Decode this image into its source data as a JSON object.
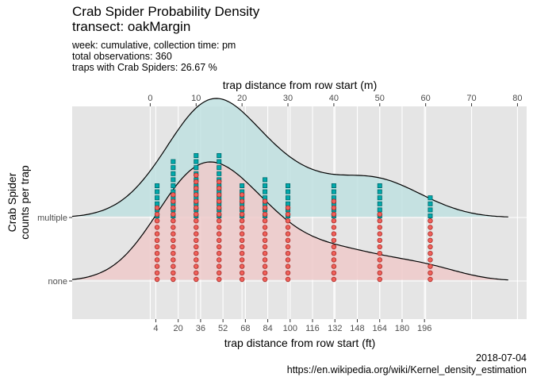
{
  "header": {
    "title_line1": "Crab Spider Probability Density",
    "title_line2": "transect: oakMargin",
    "subtitle_line1": "week: cumulative, collection time: pm",
    "subtitle_line2": "total observations: 360",
    "subtitle_line3": "traps with Crab Spiders: 26.67 %"
  },
  "caption": {
    "date": "2018-07-04",
    "url": "https://en.wikipedia.org/wiki/Kernel_density_estimation"
  },
  "colors": {
    "panel_bg": "#e5e5e5",
    "grid": "#ffffff",
    "multiple_fill": "#bfe0e0",
    "none_fill": "#efcaca",
    "multiple_point": "#00a9ac",
    "none_point": "#f0605a"
  },
  "chart_data": {
    "type": "ridgeline",
    "top_axis": {
      "label": "trap distance from row start (m)",
      "ticks": [
        0,
        10,
        20,
        30,
        40,
        50,
        60,
        70,
        80
      ],
      "range": [
        -17,
        82
      ]
    },
    "bottom_axis": {
      "label": "trap distance from row start (ft)",
      "ticks": [
        4,
        20,
        36,
        52,
        68,
        84,
        100,
        116,
        132,
        148,
        164,
        180,
        196
      ]
    },
    "y_axis": {
      "label_line1": "Crab Spider",
      "label_line2": "counts per trap",
      "categories": [
        "none",
        "multiple"
      ]
    },
    "grid": true,
    "series": [
      {
        "name": "multiple",
        "density_peaks": [
          [
            2,
            0.25
          ],
          [
            10,
            0.7
          ],
          [
            15,
            0.85
          ],
          [
            24,
            0.6
          ],
          [
            35,
            0.35
          ],
          [
            48,
            0.45
          ],
          [
            58,
            0.18
          ]
        ],
        "density_range": [
          -17,
          78
        ],
        "points": [
          {
            "x": 1.5,
            "counts": 6
          },
          {
            "x": 5,
            "counts": 10
          },
          {
            "x": 10,
            "counts": 11
          },
          {
            "x": 15,
            "counts": 11
          },
          {
            "x": 20,
            "counts": 6
          },
          {
            "x": 25,
            "counts": 7
          },
          {
            "x": 30,
            "counts": 6
          },
          {
            "x": 40,
            "counts": 6
          },
          {
            "x": 50,
            "counts": 6
          },
          {
            "x": 61,
            "counts": 4
          }
        ]
      },
      {
        "name": "none",
        "density_peaks": [
          [
            2,
            0.25
          ],
          [
            8,
            0.7
          ],
          [
            15,
            0.85
          ],
          [
            25,
            0.6
          ],
          [
            38,
            0.3
          ],
          [
            48,
            0.2
          ],
          [
            60,
            0.18
          ]
        ],
        "density_range": [
          -17,
          78
        ],
        "points": [
          {
            "x": 1.5,
            "counts": 12
          },
          {
            "x": 5,
            "counts": 14
          },
          {
            "x": 10,
            "counts": 17
          },
          {
            "x": 15,
            "counts": 16
          },
          {
            "x": 20,
            "counts": 14
          },
          {
            "x": 25,
            "counts": 13
          },
          {
            "x": 30,
            "counts": 12
          },
          {
            "x": 40,
            "counts": 13
          },
          {
            "x": 50,
            "counts": 11
          },
          {
            "x": 61,
            "counts": 10
          }
        ]
      }
    ]
  }
}
